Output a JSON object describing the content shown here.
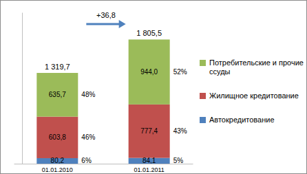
{
  "chart_data": {
    "type": "bar",
    "stacked": true,
    "data_labels": true,
    "tick_labels": "x",
    "legend": "right",
    "categories": [
      "01.01.2010",
      "01.01.2011"
    ],
    "series": [
      {
        "name": "Автокредитование",
        "color": "#4F81BD",
        "values": [
          80.2,
          84.1
        ],
        "value_labels": [
          "80,2",
          "84,1"
        ],
        "shares": [
          6,
          5
        ],
        "share_labels": [
          "6%",
          "5%"
        ]
      },
      {
        "name": "Жилищное кредитование",
        "color": "#C0504D",
        "values": [
          603.8,
          777.4
        ],
        "value_labels": [
          "603,8",
          "777,4"
        ],
        "shares": [
          46,
          43
        ],
        "share_labels": [
          "46%",
          "43%"
        ]
      },
      {
        "name": "Потребительские и прочие ссуды",
        "color": "#9BBB59",
        "values": [
          635.7,
          944.0
        ],
        "value_labels": [
          "635,7",
          "944,0"
        ],
        "shares": [
          48,
          52
        ],
        "share_labels": [
          "48%",
          "52%"
        ]
      }
    ],
    "totals": [
      1319.7,
      1805.5
    ],
    "total_labels": [
      "1 319,7",
      "1 805,5"
    ],
    "annotations": [
      {
        "value": 36.8,
        "label": "+36,8"
      }
    ],
    "ylim": [
      0,
      2200
    ],
    "yticks": []
  }
}
